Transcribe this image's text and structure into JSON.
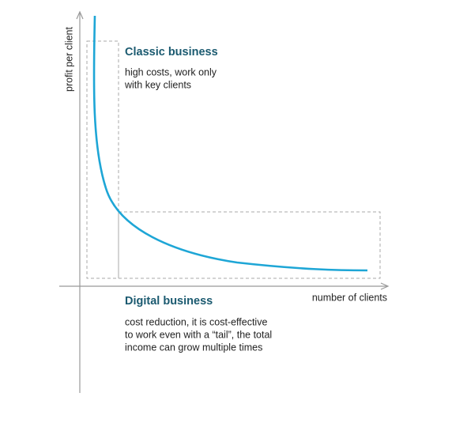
{
  "axes": {
    "y_label": "profit per client",
    "x_label": "number of clients"
  },
  "annotations": [
    {
      "title": "Classic business",
      "lines": [
        "high costs, work only",
        "with key clients"
      ]
    },
    {
      "title": "Digital business",
      "lines": [
        "cost reduction, it is cost-effective",
        "to work even with a “tail”, the total",
        "income can grow multiple times"
      ]
    }
  ]
}
